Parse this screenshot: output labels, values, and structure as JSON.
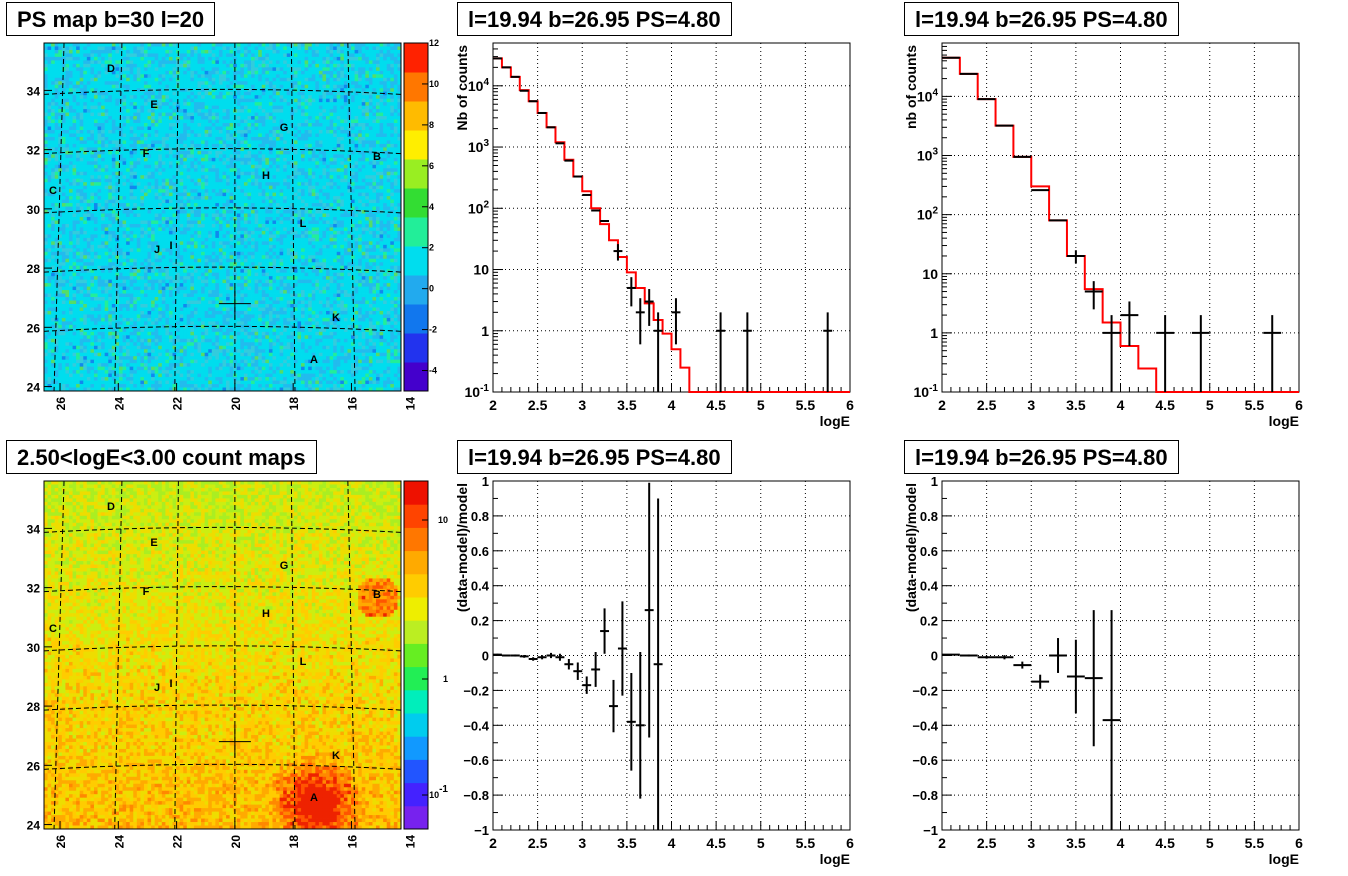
{
  "colors": {
    "model_line": "#ff0000",
    "data_points": "#000000",
    "grid": "#000000",
    "frame": "#000000"
  },
  "maps": [
    {
      "title": "PS map b=30 l=20",
      "x_ticks": [
        "26",
        "24",
        "22",
        "20",
        "18",
        "16",
        "14"
      ],
      "y_ticks": [
        "24",
        "26",
        "28",
        "30",
        "32",
        "34"
      ],
      "colorbar_ticks": [
        "12",
        "10",
        "8",
        "6",
        "4",
        "2",
        "0",
        "-2",
        "-4"
      ],
      "colorbar_range": [
        -5,
        12
      ],
      "background": "cyan (PS near 0)",
      "source_labels": [
        "D",
        "E",
        "G",
        "F",
        "B",
        "C",
        "H",
        "L",
        "J",
        "I",
        "K",
        "A"
      ],
      "cross_position_lb": [
        20.0,
        26.8
      ]
    },
    {
      "title": "2.50<logE<3.00 count maps",
      "x_ticks": [
        "26",
        "24",
        "22",
        "20",
        "18",
        "16",
        "14"
      ],
      "y_ticks": [
        "24",
        "26",
        "28",
        "30",
        "32",
        "34"
      ],
      "colorbar_ticks": [
        "10",
        "1",
        "10⁻¹"
      ],
      "colorbar_log": true,
      "background": "yellow/orange (counts ~ 3-10)",
      "source_labels": [
        "D",
        "E",
        "G",
        "F",
        "B",
        "C",
        "H",
        "L",
        "J",
        "I",
        "K",
        "A"
      ],
      "cross_position_lb": [
        20.0,
        26.8
      ]
    }
  ],
  "chart_data": [
    {
      "type": "line",
      "title": "l=19.94 b=26.95 PS=4.80",
      "xlabel": "logE",
      "ylabel": "Nb of counts",
      "xlim": [
        2,
        6
      ],
      "ylim": [
        0.1,
        50000
      ],
      "yscale": "log",
      "grid": true,
      "x_ticks": [
        "2",
        "2.5",
        "3",
        "3.5",
        "4",
        "4.5",
        "5",
        "5.5",
        "6"
      ],
      "y_ticks": [
        "10⁻¹",
        "1",
        "10",
        "10²",
        "10³",
        "10⁴"
      ],
      "model_step": {
        "bin_edges": [
          2.0,
          2.1,
          2.2,
          2.3,
          2.4,
          2.5,
          2.6,
          2.7,
          2.8,
          2.9,
          3.0,
          3.1,
          3.2,
          3.3,
          3.4,
          3.5,
          3.6,
          3.7,
          3.8,
          3.9,
          4.0,
          4.1,
          4.2,
          6.0
        ],
        "values": [
          28000,
          20000,
          14000,
          8500,
          5600,
          3600,
          2100,
          1200,
          620,
          330,
          190,
          100,
          55,
          30,
          16,
          9,
          5,
          2.8,
          1.5,
          0.9,
          0.5,
          0.25,
          0.1
        ]
      },
      "data_points": [
        {
          "x": 2.05,
          "y": 28000,
          "err": 0
        },
        {
          "x": 2.15,
          "y": 20000,
          "err": 0
        },
        {
          "x": 2.25,
          "y": 14000,
          "err": 0
        },
        {
          "x": 2.35,
          "y": 8300,
          "err": 0
        },
        {
          "x": 2.45,
          "y": 5600,
          "err": 0
        },
        {
          "x": 2.55,
          "y": 3600,
          "err": 0
        },
        {
          "x": 2.65,
          "y": 2100,
          "err": 0
        },
        {
          "x": 2.75,
          "y": 1150,
          "err": 0
        },
        {
          "x": 2.85,
          "y": 600,
          "err": 0
        },
        {
          "x": 2.95,
          "y": 330,
          "err": 0
        },
        {
          "x": 3.05,
          "y": 165,
          "err": 0
        },
        {
          "x": 3.15,
          "y": 92,
          "err": 0
        },
        {
          "x": 3.25,
          "y": 62,
          "err": 0
        },
        {
          "x": 3.4,
          "y": 20,
          "err": 0.3
        },
        {
          "x": 3.55,
          "y": 5,
          "err": 0.5
        },
        {
          "x": 3.65,
          "y": 2,
          "err": 0.7
        },
        {
          "x": 3.75,
          "y": 3,
          "err": 0.6
        },
        {
          "x": 3.85,
          "y": 1,
          "err": 1.0
        },
        {
          "x": 4.05,
          "y": 2,
          "err": 0.7
        },
        {
          "x": 4.55,
          "y": 1,
          "err": 1.0
        },
        {
          "x": 4.85,
          "y": 1,
          "err": 1.0
        },
        {
          "x": 5.75,
          "y": 1,
          "err": 1.0
        }
      ]
    },
    {
      "type": "line",
      "title": "l=19.94 b=26.95 PS=4.80",
      "xlabel": "logE",
      "ylabel": "nb of counts",
      "xlim": [
        2,
        6
      ],
      "ylim": [
        0.1,
        80000
      ],
      "yscale": "log",
      "grid": true,
      "x_ticks": [
        "2",
        "2.5",
        "3",
        "3.5",
        "4",
        "4.5",
        "5",
        "5.5",
        "6"
      ],
      "y_ticks": [
        "10⁻¹",
        "1",
        "10",
        "10²",
        "10³",
        "10⁴"
      ],
      "model_step": {
        "bin_edges": [
          2.0,
          2.2,
          2.4,
          2.6,
          2.8,
          3.0,
          3.2,
          3.4,
          3.6,
          3.8,
          4.0,
          4.2,
          4.4,
          6.0
        ],
        "values": [
          45000,
          24000,
          9000,
          3200,
          950,
          300,
          80,
          20,
          5.5,
          1.5,
          0.6,
          0.25,
          0.1
        ]
      },
      "data_points": [
        {
          "x": 2.1,
          "y": 45000,
          "err": 0
        },
        {
          "x": 2.3,
          "y": 24000,
          "err": 0
        },
        {
          "x": 2.5,
          "y": 9000,
          "err": 0
        },
        {
          "x": 2.7,
          "y": 3200,
          "err": 0
        },
        {
          "x": 2.9,
          "y": 950,
          "err": 0
        },
        {
          "x": 3.1,
          "y": 260,
          "err": 0
        },
        {
          "x": 3.3,
          "y": 80,
          "err": 0
        },
        {
          "x": 3.5,
          "y": 20,
          "err": 0.25
        },
        {
          "x": 3.7,
          "y": 5,
          "err": 0.5
        },
        {
          "x": 3.9,
          "y": 1,
          "err": 1.0
        },
        {
          "x": 4.1,
          "y": 2,
          "err": 0.7
        },
        {
          "x": 4.5,
          "y": 1,
          "err": 1.0
        },
        {
          "x": 4.9,
          "y": 1,
          "err": 1.0
        },
        {
          "x": 5.7,
          "y": 1,
          "err": 1.0
        }
      ]
    },
    {
      "type": "scatter",
      "title": "l=19.94 b=26.95 PS=4.80",
      "xlabel": "logE",
      "ylabel": "(data-model)/model",
      "xlim": [
        2,
        6
      ],
      "ylim": [
        -1,
        1
      ],
      "grid": true,
      "x_ticks": [
        "2",
        "2.5",
        "3",
        "3.5",
        "4",
        "4.5",
        "5",
        "5.5",
        "6"
      ],
      "y_ticks": [
        "−1",
        "−0.8",
        "−0.6",
        "−0.4",
        "−0.2",
        "0",
        "0.2",
        "0.4",
        "0.6",
        "0.8",
        "1"
      ],
      "points": [
        {
          "x": 2.05,
          "y": 0.005,
          "err": 0.005
        },
        {
          "x": 2.15,
          "y": 0.0,
          "err": 0.005
        },
        {
          "x": 2.25,
          "y": 0.0,
          "err": 0.006
        },
        {
          "x": 2.35,
          "y": -0.005,
          "err": 0.008
        },
        {
          "x": 2.45,
          "y": -0.02,
          "err": 0.01
        },
        {
          "x": 2.55,
          "y": -0.01,
          "err": 0.012
        },
        {
          "x": 2.65,
          "y": 0.0,
          "err": 0.015
        },
        {
          "x": 2.75,
          "y": -0.01,
          "err": 0.02
        },
        {
          "x": 2.85,
          "y": -0.05,
          "err": 0.03
        },
        {
          "x": 2.95,
          "y": -0.09,
          "err": 0.05
        },
        {
          "x": 3.05,
          "y": -0.17,
          "err": 0.05
        },
        {
          "x": 3.15,
          "y": -0.08,
          "err": 0.1
        },
        {
          "x": 3.25,
          "y": 0.14,
          "err": 0.13
        },
        {
          "x": 3.35,
          "y": -0.29,
          "err": 0.15
        },
        {
          "x": 3.45,
          "y": 0.04,
          "err": 0.27
        },
        {
          "x": 3.55,
          "y": -0.38,
          "err": 0.28
        },
        {
          "x": 3.65,
          "y": -0.4,
          "err": 0.42
        },
        {
          "x": 3.75,
          "y": 0.26,
          "err": 0.73
        },
        {
          "x": 3.85,
          "y": -0.05,
          "err": 0.95
        }
      ]
    },
    {
      "type": "scatter",
      "title": "l=19.94 b=26.95 PS=4.80",
      "xlabel": "logE",
      "ylabel": "(data-model)/model",
      "xlim": [
        2,
        6
      ],
      "ylim": [
        -1,
        1
      ],
      "grid": true,
      "x_ticks": [
        "2",
        "2.5",
        "3",
        "3.5",
        "4",
        "4.5",
        "5",
        "5.5",
        "6"
      ],
      "y_ticks": [
        "−1",
        "−0.8",
        "−0.6",
        "−0.4",
        "−0.2",
        "0",
        "0.2",
        "0.4",
        "0.6",
        "0.8",
        "1"
      ],
      "points": [
        {
          "x": 2.1,
          "y": 0.005,
          "err": 0.004
        },
        {
          "x": 2.3,
          "y": 0.0,
          "err": 0.006
        },
        {
          "x": 2.5,
          "y": -0.01,
          "err": 0.008
        },
        {
          "x": 2.7,
          "y": -0.01,
          "err": 0.012
        },
        {
          "x": 2.9,
          "y": -0.055,
          "err": 0.02
        },
        {
          "x": 3.1,
          "y": -0.15,
          "err": 0.04
        },
        {
          "x": 3.3,
          "y": 0.0,
          "err": 0.1
        },
        {
          "x": 3.5,
          "y": -0.12,
          "err": 0.21
        },
        {
          "x": 3.7,
          "y": -0.13,
          "err": 0.39
        },
        {
          "x": 3.9,
          "y": -0.37,
          "err": 0.63
        }
      ]
    }
  ]
}
